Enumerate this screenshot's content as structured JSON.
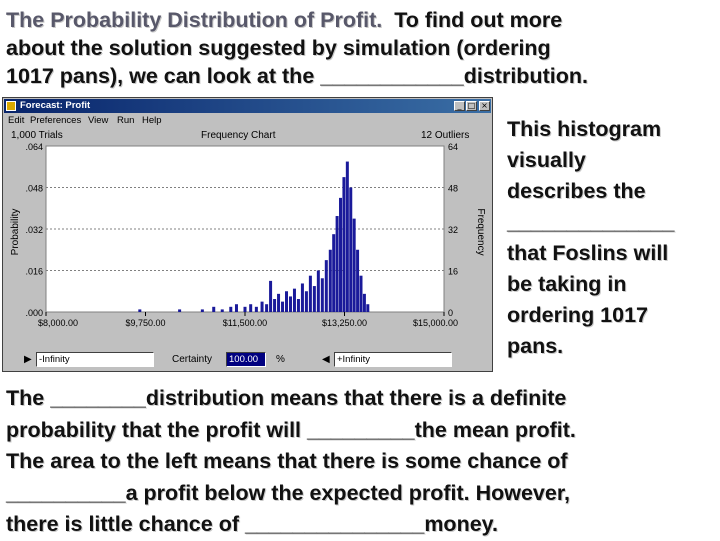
{
  "top_text": {
    "title": "The Probability Distribution of Profit.",
    "line1_rest": "  To find out more",
    "line2": "about the solution suggested by simulation (ordering",
    "line3": "1017 pans), we can look at the ____________distribution."
  },
  "side_text": [
    "This histogram",
    "visually",
    "describes the",
    "______________",
    "that Foslins will",
    "be taking in",
    "ordering 1017",
    "pans."
  ],
  "bottom_text": [
    "The ________distribution means that there is a definite",
    "probability that the profit will _________the mean profit.",
    "The area to the left means that there is some chance of",
    "__________a profit below the expected profit.  However,",
    "there is little chance of _______________money."
  ],
  "window": {
    "title": "Forecast: Profit",
    "controls": {
      "minimize": "_",
      "maximize": "□",
      "close": "×"
    },
    "menu": [
      "Edit",
      "Preferences",
      "View",
      "Run",
      "Help"
    ],
    "header": {
      "trials": "1,000 Trials",
      "chart_name": "Frequency Chart",
      "outliers": "12 Outliers"
    },
    "bottom": {
      "left_value": "-Infinity",
      "certainty_label": "Certainty",
      "certainty_value": "100.00",
      "percent": "%",
      "right_value": "+Infinity"
    }
  },
  "chart_data": {
    "type": "bar",
    "ylabel": "Probability",
    "y2label": "Frequency",
    "ylim": [
      0,
      0.064
    ],
    "y2lim": [
      0,
      64
    ],
    "y_ticks": [
      ".064",
      ".048",
      ".032",
      ".016",
      ".000"
    ],
    "y_tick_values": [
      0.064,
      0.048,
      0.032,
      0.016,
      0.0
    ],
    "y2_ticks": [
      "64",
      "48",
      "32",
      "16",
      "0"
    ],
    "y2_tick_values": [
      64,
      48,
      32,
      16,
      0
    ],
    "x_ticks": [
      "$8,000.00",
      "$9,750.00",
      "$11,500.00",
      "$13,250.00",
      "$15,000.00"
    ],
    "x_tick_values": [
      8000,
      9750,
      11500,
      13250,
      15000
    ],
    "xlim": [
      8000,
      15000
    ],
    "bar_color": "#1a1a9a",
    "bins": [
      {
        "x": 9650,
        "f": 1
      },
      {
        "x": 10350,
        "f": 1
      },
      {
        "x": 10750,
        "f": 1
      },
      {
        "x": 10950,
        "f": 2
      },
      {
        "x": 11100,
        "f": 1
      },
      {
        "x": 11250,
        "f": 2
      },
      {
        "x": 11350,
        "f": 3
      },
      {
        "x": 11500,
        "f": 2
      },
      {
        "x": 11600,
        "f": 3
      },
      {
        "x": 11700,
        "f": 2
      },
      {
        "x": 11800,
        "f": 4
      },
      {
        "x": 11880,
        "f": 3
      },
      {
        "x": 11950,
        "f": 12
      },
      {
        "x": 12020,
        "f": 5
      },
      {
        "x": 12090,
        "f": 7
      },
      {
        "x": 12160,
        "f": 4
      },
      {
        "x": 12230,
        "f": 8
      },
      {
        "x": 12300,
        "f": 6
      },
      {
        "x": 12370,
        "f": 9
      },
      {
        "x": 12440,
        "f": 5
      },
      {
        "x": 12510,
        "f": 11
      },
      {
        "x": 12580,
        "f": 8
      },
      {
        "x": 12650,
        "f": 14
      },
      {
        "x": 12720,
        "f": 10
      },
      {
        "x": 12790,
        "f": 16
      },
      {
        "x": 12860,
        "f": 13
      },
      {
        "x": 12930,
        "f": 20
      },
      {
        "x": 13000,
        "f": 24
      },
      {
        "x": 13060,
        "f": 30
      },
      {
        "x": 13120,
        "f": 37
      },
      {
        "x": 13180,
        "f": 44
      },
      {
        "x": 13240,
        "f": 52
      },
      {
        "x": 13300,
        "f": 58
      },
      {
        "x": 13360,
        "f": 48
      },
      {
        "x": 13420,
        "f": 36
      },
      {
        "x": 13480,
        "f": 24
      },
      {
        "x": 13540,
        "f": 14
      },
      {
        "x": 13600,
        "f": 7
      },
      {
        "x": 13660,
        "f": 3
      }
    ]
  }
}
